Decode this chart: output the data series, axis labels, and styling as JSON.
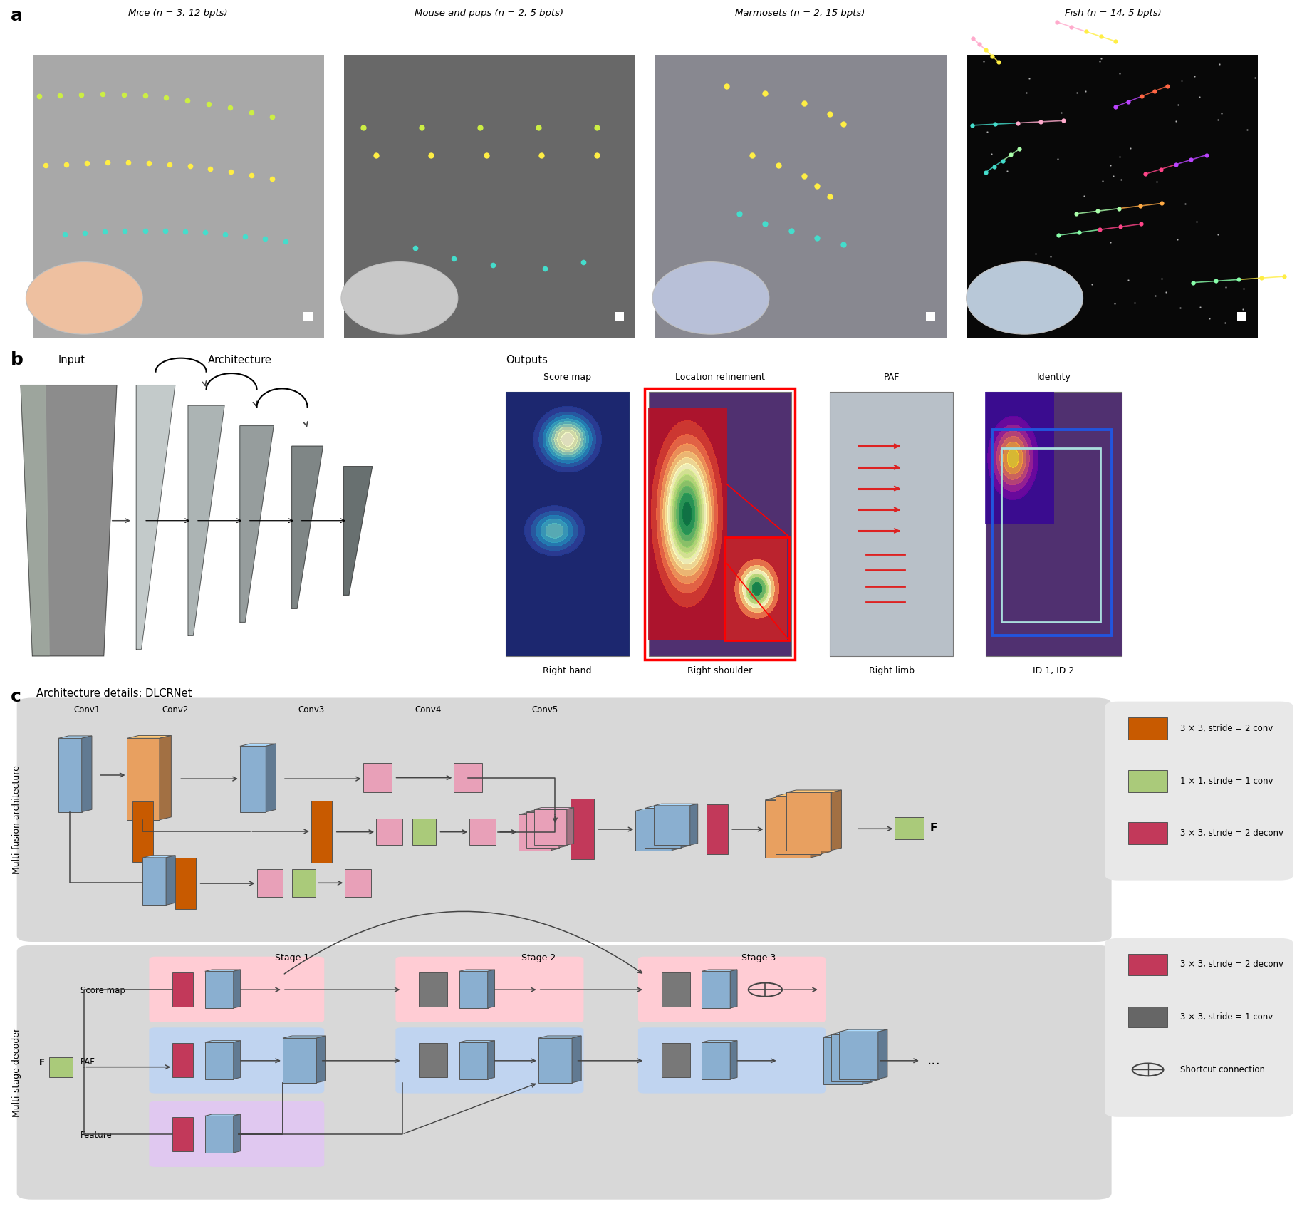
{
  "panel_a_titles": [
    "Mice (n = 3, 12 bpts)",
    "Mouse and pups (n = 2, 5 bpts)",
    "Marmosets (n = 2, 15 bpts)",
    "Fish (n = 14, 5 bpts)"
  ],
  "panel_b_output_labels": [
    "Score map",
    "Location refinement",
    "PAF",
    "Identity"
  ],
  "panel_b_captions": [
    "Right hand",
    "Right shoulder",
    "Right limb",
    "ID 1, ID 2"
  ],
  "panel_c_title": "Architecture details: DLCRNet",
  "panel_c_conv_labels": [
    "Conv1",
    "Conv2",
    "Conv3",
    "Conv4",
    "Conv5"
  ],
  "panel_c_stage_labels": [
    "Stage 1",
    "Stage 2",
    "Stage 3"
  ],
  "panel_c_y_label_top": "Multi-fusion architecture",
  "panel_c_y_label_bot": "Multi-stage decoder",
  "legend_top": [
    {
      "color": "#C85A00",
      "label": "3 × 3, stride = 2 conv"
    },
    {
      "color": "#AACA7A",
      "label": "1 × 1, stride = 1 conv"
    },
    {
      "color": "#C2395A",
      "label": "3 × 3, stride = 2 deconv"
    }
  ],
  "legend_bot": [
    {
      "color": "#C2395A",
      "label": "3 × 3, stride = 2 deconv"
    },
    {
      "color": "#666666",
      "label": "3 × 3, stride = 1 conv"
    },
    {
      "color": "#000000",
      "label": "⊕  Shortcut connection"
    }
  ],
  "colors": {
    "blue_block": "#8AAFD0",
    "orange_block": "#E8A060",
    "brown_block": "#C85A00",
    "pink_block": "#E8A0B8",
    "green_block": "#AACA7A",
    "magenta_block": "#C2395A",
    "gray_bg": "#D8D8D8",
    "purple_img": "#503070",
    "gray_img": "#B8C0C8"
  },
  "background_color": "#FFFFFF",
  "img_colors": [
    "#A8A8A8",
    "#686868",
    "#888890",
    "#080808"
  ],
  "circle_colors": [
    "#EEC0A0",
    "#C8C8C8",
    "#B8C0D8",
    "#B8C8D8"
  ]
}
